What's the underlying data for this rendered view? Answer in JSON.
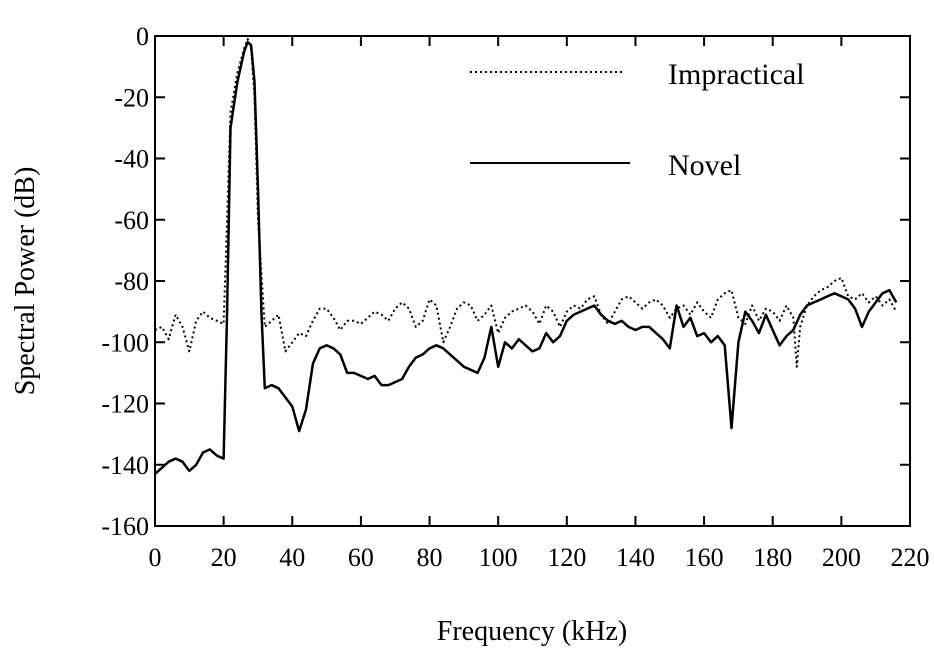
{
  "chart_data": {
    "type": "line",
    "title": "",
    "xlabel": "Frequency (kHz)",
    "ylabel": "Spectral Power (dB)",
    "xlim": [
      0,
      220
    ],
    "ylim": [
      -160,
      0
    ],
    "xticks": [
      0,
      20,
      40,
      60,
      80,
      100,
      120,
      140,
      160,
      180,
      200,
      220
    ],
    "yticks": [
      0,
      -20,
      -40,
      -60,
      -80,
      -100,
      -120,
      -140,
      -160
    ],
    "grid": false,
    "legend": {
      "placement": "top-right"
    },
    "series": [
      {
        "name": "Impractical",
        "style": "dotted",
        "color": "#000000",
        "points": [
          [
            0,
            -96
          ],
          [
            2,
            -95
          ],
          [
            4,
            -99
          ],
          [
            6,
            -91
          ],
          [
            8,
            -95
          ],
          [
            10,
            -103
          ],
          [
            12,
            -93
          ],
          [
            14,
            -90
          ],
          [
            16,
            -92
          ],
          [
            18,
            -93
          ],
          [
            20,
            -94
          ],
          [
            21,
            -60
          ],
          [
            22,
            -25
          ],
          [
            24,
            -12
          ],
          [
            26,
            -4
          ],
          [
            27,
            -1
          ],
          [
            28,
            -4
          ],
          [
            29,
            -20
          ],
          [
            30,
            -60
          ],
          [
            32,
            -95
          ],
          [
            34,
            -93
          ],
          [
            36,
            -91
          ],
          [
            38,
            -103
          ],
          [
            40,
            -100
          ],
          [
            42,
            -97
          ],
          [
            44,
            -98
          ],
          [
            46,
            -93
          ],
          [
            48,
            -89
          ],
          [
            50,
            -89
          ],
          [
            52,
            -92
          ],
          [
            54,
            -96
          ],
          [
            56,
            -93
          ],
          [
            58,
            -93
          ],
          [
            60,
            -94
          ],
          [
            62,
            -92
          ],
          [
            64,
            -90
          ],
          [
            66,
            -91
          ],
          [
            68,
            -93
          ],
          [
            70,
            -89
          ],
          [
            72,
            -87
          ],
          [
            74,
            -89
          ],
          [
            76,
            -95
          ],
          [
            78,
            -93
          ],
          [
            80,
            -86
          ],
          [
            82,
            -88
          ],
          [
            84,
            -100
          ],
          [
            86,
            -95
          ],
          [
            88,
            -89
          ],
          [
            90,
            -87
          ],
          [
            92,
            -88
          ],
          [
            94,
            -93
          ],
          [
            96,
            -91
          ],
          [
            98,
            -88
          ],
          [
            100,
            -97
          ],
          [
            102,
            -92
          ],
          [
            104,
            -90
          ],
          [
            106,
            -89
          ],
          [
            108,
            -88
          ],
          [
            110,
            -90
          ],
          [
            112,
            -94
          ],
          [
            114,
            -88
          ],
          [
            116,
            -90
          ],
          [
            118,
            -95
          ],
          [
            120,
            -90
          ],
          [
            122,
            -88
          ],
          [
            124,
            -89
          ],
          [
            126,
            -86
          ],
          [
            128,
            -85
          ],
          [
            130,
            -91
          ],
          [
            132,
            -94
          ],
          [
            134,
            -90
          ],
          [
            136,
            -86
          ],
          [
            138,
            -85
          ],
          [
            140,
            -87
          ],
          [
            142,
            -89
          ],
          [
            144,
            -87
          ],
          [
            146,
            -86
          ],
          [
            148,
            -88
          ],
          [
            150,
            -92
          ],
          [
            152,
            -89
          ],
          [
            154,
            -88
          ],
          [
            156,
            -91
          ],
          [
            158,
            -87
          ],
          [
            160,
            -90
          ],
          [
            162,
            -92
          ],
          [
            164,
            -86
          ],
          [
            166,
            -84
          ],
          [
            168,
            -83
          ],
          [
            170,
            -92
          ],
          [
            172,
            -94
          ],
          [
            174,
            -88
          ],
          [
            176,
            -93
          ],
          [
            178,
            -89
          ],
          [
            180,
            -90
          ],
          [
            182,
            -93
          ],
          [
            184,
            -88
          ],
          [
            186,
            -92
          ],
          [
            187,
            -108
          ],
          [
            188,
            -95
          ],
          [
            190,
            -88
          ],
          [
            192,
            -85
          ],
          [
            194,
            -83
          ],
          [
            196,
            -82
          ],
          [
            198,
            -80
          ],
          [
            200,
            -79
          ],
          [
            202,
            -85
          ],
          [
            204,
            -86
          ],
          [
            206,
            -84
          ],
          [
            208,
            -87
          ],
          [
            210,
            -85
          ],
          [
            212,
            -88
          ],
          [
            214,
            -86
          ],
          [
            216,
            -90
          ]
        ]
      },
      {
        "name": "Novel",
        "style": "solid",
        "color": "#000000",
        "points": [
          [
            0,
            -143
          ],
          [
            2,
            -141
          ],
          [
            4,
            -139
          ],
          [
            6,
            -138
          ],
          [
            8,
            -139
          ],
          [
            10,
            -142
          ],
          [
            12,
            -140
          ],
          [
            14,
            -136
          ],
          [
            16,
            -135
          ],
          [
            18,
            -137
          ],
          [
            20,
            -138
          ],
          [
            21,
            -90
          ],
          [
            22,
            -30
          ],
          [
            24,
            -15
          ],
          [
            26,
            -5
          ],
          [
            27,
            -2
          ],
          [
            28,
            -3
          ],
          [
            29,
            -15
          ],
          [
            30,
            -50
          ],
          [
            31,
            -90
          ],
          [
            32,
            -115
          ],
          [
            34,
            -114
          ],
          [
            36,
            -115
          ],
          [
            38,
            -118
          ],
          [
            40,
            -121
          ],
          [
            42,
            -129
          ],
          [
            44,
            -122
          ],
          [
            46,
            -107
          ],
          [
            48,
            -102
          ],
          [
            50,
            -101
          ],
          [
            52,
            -102
          ],
          [
            54,
            -104
          ],
          [
            56,
            -110
          ],
          [
            58,
            -110
          ],
          [
            60,
            -111
          ],
          [
            62,
            -112
          ],
          [
            64,
            -111
          ],
          [
            66,
            -114
          ],
          [
            68,
            -114
          ],
          [
            70,
            -113
          ],
          [
            72,
            -112
          ],
          [
            74,
            -108
          ],
          [
            76,
            -105
          ],
          [
            78,
            -104
          ],
          [
            80,
            -102
          ],
          [
            82,
            -101
          ],
          [
            84,
            -102
          ],
          [
            86,
            -104
          ],
          [
            88,
            -106
          ],
          [
            90,
            -108
          ],
          [
            92,
            -109
          ],
          [
            94,
            -110
          ],
          [
            96,
            -105
          ],
          [
            98,
            -95
          ],
          [
            100,
            -108
          ],
          [
            102,
            -100
          ],
          [
            104,
            -102
          ],
          [
            106,
            -99
          ],
          [
            108,
            -101
          ],
          [
            110,
            -103
          ],
          [
            112,
            -102
          ],
          [
            114,
            -97
          ],
          [
            116,
            -100
          ],
          [
            118,
            -98
          ],
          [
            120,
            -93
          ],
          [
            122,
            -91
          ],
          [
            124,
            -90
          ],
          [
            126,
            -89
          ],
          [
            128,
            -88
          ],
          [
            130,
            -91
          ],
          [
            132,
            -93
          ],
          [
            134,
            -94
          ],
          [
            136,
            -93
          ],
          [
            138,
            -95
          ],
          [
            140,
            -96
          ],
          [
            142,
            -95
          ],
          [
            144,
            -95
          ],
          [
            146,
            -97
          ],
          [
            148,
            -99
          ],
          [
            150,
            -102
          ],
          [
            152,
            -88
          ],
          [
            154,
            -95
          ],
          [
            156,
            -92
          ],
          [
            158,
            -98
          ],
          [
            160,
            -97
          ],
          [
            162,
            -100
          ],
          [
            164,
            -98
          ],
          [
            166,
            -101
          ],
          [
            168,
            -128
          ],
          [
            170,
            -100
          ],
          [
            172,
            -90
          ],
          [
            174,
            -93
          ],
          [
            176,
            -97
          ],
          [
            178,
            -91
          ],
          [
            180,
            -96
          ],
          [
            182,
            -101
          ],
          [
            184,
            -98
          ],
          [
            186,
            -96
          ],
          [
            188,
            -91
          ],
          [
            190,
            -88
          ],
          [
            192,
            -87
          ],
          [
            194,
            -86
          ],
          [
            196,
            -85
          ],
          [
            198,
            -84
          ],
          [
            200,
            -85
          ],
          [
            202,
            -86
          ],
          [
            204,
            -89
          ],
          [
            206,
            -95
          ],
          [
            208,
            -90
          ],
          [
            210,
            -87
          ],
          [
            212,
            -84
          ],
          [
            214,
            -83
          ],
          [
            216,
            -87
          ]
        ]
      }
    ]
  }
}
